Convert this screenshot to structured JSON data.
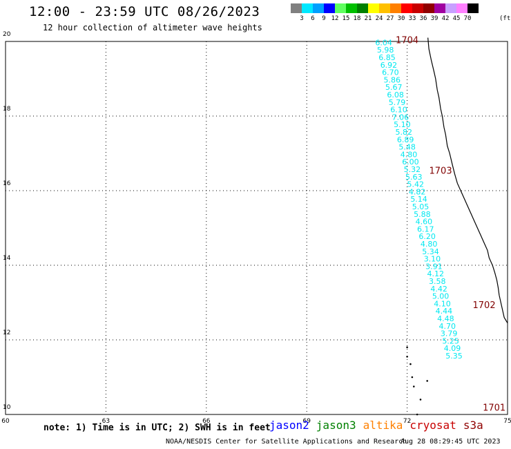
{
  "header": {
    "title": "12:00 - 23:59 UTC 08/26/2023",
    "subtitle": "12 hour collection of altimeter wave heights"
  },
  "legend": {
    "colors": [
      "#808080",
      "#00e8ff",
      "#00a0ff",
      "#0000ff",
      "#60ff60",
      "#00c000",
      "#008000",
      "#ffff00",
      "#ffc000",
      "#ff8000",
      "#ff0000",
      "#c80000",
      "#900000",
      "#a000a0",
      "#c8a0ff",
      "#ff80ff",
      "#000000"
    ],
    "labels": [
      "3",
      "6",
      "9",
      "12",
      "15",
      "18",
      "21",
      "24",
      "27",
      "30",
      "33",
      "36",
      "39",
      "42",
      "45",
      "70"
    ],
    "unit": "(ft)"
  },
  "map_data": {
    "lat_ticks": [
      "10",
      "12",
      "14",
      "16",
      "18",
      "20"
    ],
    "lon_ticks": [
      "60",
      "63",
      "66",
      "69",
      "72",
      "75"
    ],
    "lon_range": [
      60,
      75
    ],
    "lat_range": [
      10,
      20
    ],
    "track": {
      "color": "#00e8f0",
      "points": [
        {
          "lat": 19.9,
          "lon": 71.3,
          "v": "6.04"
        },
        {
          "lat": 19.7,
          "lon": 71.35,
          "v": "5.98"
        },
        {
          "lat": 19.5,
          "lon": 71.4,
          "v": "6.85"
        },
        {
          "lat": 19.3,
          "lon": 71.45,
          "v": "6.92"
        },
        {
          "lat": 19.1,
          "lon": 71.5,
          "v": "6.70"
        },
        {
          "lat": 18.9,
          "lon": 71.55,
          "v": "5.86"
        },
        {
          "lat": 18.7,
          "lon": 71.6,
          "v": "5.67"
        },
        {
          "lat": 18.5,
          "lon": 71.65,
          "v": "6.08"
        },
        {
          "lat": 18.3,
          "lon": 71.7,
          "v": "5.79"
        },
        {
          "lat": 18.1,
          "lon": 71.75,
          "v": "6.10"
        },
        {
          "lat": 17.9,
          "lon": 71.8,
          "v": "7.06"
        },
        {
          "lat": 17.7,
          "lon": 71.85,
          "v": "5.10"
        },
        {
          "lat": 17.5,
          "lon": 71.9,
          "v": "5.82"
        },
        {
          "lat": 17.3,
          "lon": 71.95,
          "v": "6.89"
        },
        {
          "lat": 17.1,
          "lon": 72.0,
          "v": "5.48"
        },
        {
          "lat": 16.9,
          "lon": 72.05,
          "v": "4.80"
        },
        {
          "lat": 16.7,
          "lon": 72.1,
          "v": "6.00"
        },
        {
          "lat": 16.5,
          "lon": 72.15,
          "v": "5.32"
        },
        {
          "lat": 16.3,
          "lon": 72.2,
          "v": "5.63"
        },
        {
          "lat": 16.1,
          "lon": 72.25,
          "v": "5.42"
        },
        {
          "lat": 15.9,
          "lon": 72.3,
          "v": "4.82"
        },
        {
          "lat": 15.7,
          "lon": 72.35,
          "v": "5.14"
        },
        {
          "lat": 15.5,
          "lon": 72.4,
          "v": "5.05"
        },
        {
          "lat": 15.3,
          "lon": 72.45,
          "v": "5.88"
        },
        {
          "lat": 15.1,
          "lon": 72.5,
          "v": "4.60"
        },
        {
          "lat": 14.9,
          "lon": 72.55,
          "v": "6.17"
        },
        {
          "lat": 14.7,
          "lon": 72.6,
          "v": "6.20"
        },
        {
          "lat": 14.5,
          "lon": 72.65,
          "v": "4.80"
        },
        {
          "lat": 14.3,
          "lon": 72.7,
          "v": "5.34"
        },
        {
          "lat": 14.1,
          "lon": 72.75,
          "v": "3.10"
        },
        {
          "lat": 13.9,
          "lon": 72.8,
          "v": "3.91"
        },
        {
          "lat": 13.7,
          "lon": 72.85,
          "v": "4.12"
        },
        {
          "lat": 13.5,
          "lon": 72.9,
          "v": "3.58"
        },
        {
          "lat": 13.3,
          "lon": 72.95,
          "v": "4.42"
        },
        {
          "lat": 13.1,
          "lon": 73.0,
          "v": "5.00"
        },
        {
          "lat": 12.9,
          "lon": 73.05,
          "v": "4.10"
        },
        {
          "lat": 12.7,
          "lon": 73.1,
          "v": "4.44"
        },
        {
          "lat": 12.5,
          "lon": 73.15,
          "v": "4.48"
        },
        {
          "lat": 12.3,
          "lon": 73.2,
          "v": "4.70"
        },
        {
          "lat": 12.1,
          "lon": 73.25,
          "v": "3.79"
        },
        {
          "lat": 11.9,
          "lon": 73.3,
          "v": "5.25"
        },
        {
          "lat": 11.7,
          "lon": 73.35,
          "v": "4.09"
        },
        {
          "lat": 11.5,
          "lon": 73.4,
          "v": "5.35"
        }
      ]
    },
    "pass_labels": [
      {
        "text": "1704",
        "lat": 19.95,
        "lon": 72.0
      },
      {
        "text": "1703",
        "lat": 16.45,
        "lon": 73.0
      },
      {
        "text": "1702",
        "lat": 12.85,
        "lon": 74.3
      },
      {
        "text": "1701",
        "lat": 10.1,
        "lon": 74.6
      }
    ],
    "pass_label_color": "#800000"
  },
  "footer": {
    "note": "note: 1) Time is in UTC; 2) SWH is in feet",
    "satellites": [
      {
        "name": "jason2",
        "color": "#0000ff"
      },
      {
        "name": "jason3",
        "color": "#008000"
      },
      {
        "name": "altika",
        "color": "#ff8000"
      },
      {
        "name": "cryosat",
        "color": "#c80000"
      },
      {
        "name": "s3a",
        "color": "#900000"
      }
    ],
    "credit": "NOAA/NESDIS Center for Satellite Applications and Research",
    "timestamp": "Aug 28 08:29:45 UTC 2023"
  }
}
